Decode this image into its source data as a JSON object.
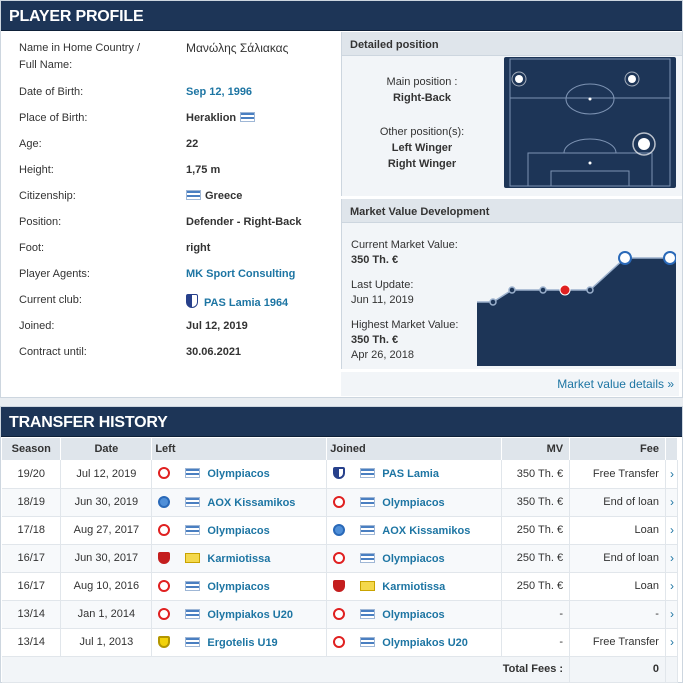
{
  "profile": {
    "title": "PLAYER PROFILE",
    "rows": [
      {
        "label": "Name in Home Country / Full Name:",
        "value": "Μανώλης Σάλιακας"
      },
      {
        "label": "Date of Birth:",
        "value": "Sep 12, 1996"
      },
      {
        "label": "Place of Birth:",
        "value": "Heraklion"
      },
      {
        "label": "Age:",
        "value": "22"
      },
      {
        "label": "Height:",
        "value": "1,75 m"
      },
      {
        "label": "Citizenship:",
        "value": "Greece"
      },
      {
        "label": "Position:",
        "value": "Defender - Right-Back"
      },
      {
        "label": "Foot:",
        "value": "right"
      },
      {
        "label": "Player Agents:",
        "value": "MK Sport Consulting"
      },
      {
        "label": "Current club:",
        "value": "PAS Lamia 1964"
      },
      {
        "label": "Joined:",
        "value": "Jul 12, 2019"
      },
      {
        "label": "Contract until:",
        "value": "30.06.2021"
      }
    ]
  },
  "detailed_position": {
    "title": "Detailed position",
    "main_label": "Main position :",
    "main_value": "Right-Back",
    "other_label": "Other position(s):",
    "other_values": [
      "Left Winger",
      "Right Winger"
    ]
  },
  "market_value": {
    "title": "Market Value Development",
    "current_label": "Current Market Value:",
    "current_value": "350 Th. €",
    "update_label": "Last Update:",
    "update_value": "Jun 11, 2019",
    "highest_label": "Highest Market Value:",
    "highest_value": "350 Th. €",
    "highest_date": "Apr 26, 2018",
    "link": "Market value details »"
  },
  "transfer": {
    "title": "TRANSFER HISTORY",
    "headers": [
      "Season",
      "Date",
      "Left",
      "Joined",
      "MV",
      "Fee"
    ],
    "rows": [
      {
        "season": "19/20",
        "date": "Jul 12, 2019",
        "left": "Olympiacos",
        "joined": "PAS Lamia",
        "mv": "350 Th. €",
        "fee": "Free Transfer"
      },
      {
        "season": "18/19",
        "date": "Jun 30, 2019",
        "left": "AOX Kissamikos",
        "joined": "Olympiacos",
        "mv": "350 Th. €",
        "fee": "End of loan"
      },
      {
        "season": "17/18",
        "date": "Aug 27, 2017",
        "left": "Olympiacos",
        "joined": "AOX Kissamikos",
        "mv": "250 Th. €",
        "fee": "Loan"
      },
      {
        "season": "16/17",
        "date": "Jun 30, 2017",
        "left": "Karmiotissa",
        "joined": "Olympiacos",
        "mv": "250 Th. €",
        "fee": "End of loan"
      },
      {
        "season": "16/17",
        "date": "Aug 10, 2016",
        "left": "Olympiacos",
        "joined": "Karmiotissa",
        "mv": "250 Th. €",
        "fee": "Loan"
      },
      {
        "season": "13/14",
        "date": "Jan 1, 2014",
        "left": "Olympiakos U20",
        "joined": "Olympiacos",
        "mv": "-",
        "fee": "-"
      },
      {
        "season": "13/14",
        "date": "Jul 1, 2013",
        "left": "Ergotelis U19",
        "joined": "Olympiakos U20",
        "mv": "-",
        "fee": "Free Transfer"
      }
    ],
    "total_label": "Total Fees :",
    "total_value": "0"
  },
  "colors": {
    "header": "#1d3557",
    "link": "#1d75a3",
    "accent": "#e02020"
  }
}
